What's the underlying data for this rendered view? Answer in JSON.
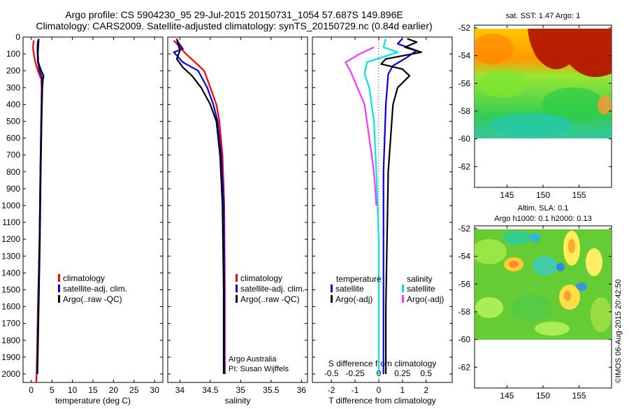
{
  "header": {
    "line1": "Argo profile: CS 5904230_95 29-Jul-2015 20150731_1054 57.687S 149.896E",
    "line2": "Climatology: CARS2009. Satellite-adjusted climatology: synTS_20150729.nc (0.84d earlier)"
  },
  "credit": {
    "agency": "Argo Australia",
    "pi": "PI: Susan Wijffels",
    "stamp": "©IMOS 06-Aug-2015 20:42:50"
  },
  "colors": {
    "climatology": "#ff0000",
    "satellite": "#0000e6",
    "argo": "#000000",
    "sal_satellite": "#00e5e5",
    "sal_argo": "#ff33ff"
  },
  "chart_data": [
    {
      "type": "line",
      "name": "temperature-profile",
      "xlabel": "temperature (deg C)",
      "xlim": [
        -2,
        32
      ],
      "ylim": [
        2050,
        0
      ],
      "xticks": [
        "0",
        "5",
        "10",
        "15",
        "20",
        "25",
        "30"
      ],
      "xtick_values": [
        0,
        5,
        10,
        15,
        20,
        25,
        30
      ],
      "yticks": [
        "0",
        "100",
        "200",
        "300",
        "400",
        "500",
        "600",
        "700",
        "800",
        "900",
        "1000",
        "1100",
        "1200",
        "1300",
        "1400",
        "1500",
        "1600",
        "1700",
        "1800",
        "1900",
        "2000"
      ],
      "ytick_values": [
        0,
        100,
        200,
        300,
        400,
        500,
        600,
        700,
        800,
        900,
        1000,
        1100,
        1200,
        1300,
        1400,
        1500,
        1600,
        1700,
        1800,
        1900,
        2000
      ],
      "legend": [
        "climatology",
        "satellite-adj. clim.",
        "Argo(..raw -QC)"
      ],
      "series": [
        {
          "name": "climatology",
          "color": "#ff0000",
          "points": [
            [
              0.6,
              20
            ],
            [
              0.4,
              60
            ],
            [
              0.6,
              100
            ],
            [
              1.0,
              150
            ],
            [
              1.6,
              200
            ],
            [
              2.4,
              250
            ],
            [
              2.5,
              300
            ],
            [
              2.4,
              500
            ],
            [
              2.2,
              800
            ],
            [
              2.0,
              1200
            ],
            [
              1.6,
              1600
            ],
            [
              1.3,
              2000
            ],
            [
              1.2,
              2050
            ]
          ]
        },
        {
          "name": "satellite-adj. clim.",
          "color": "#0000e6",
          "points": [
            [
              1.6,
              20
            ],
            [
              1.5,
              60
            ],
            [
              1.5,
              100
            ],
            [
              1.6,
              150
            ],
            [
              2.0,
              200
            ],
            [
              2.6,
              240
            ],
            [
              2.6,
              300
            ],
            [
              2.4,
              500
            ],
            [
              2.2,
              800
            ],
            [
              2.0,
              1200
            ],
            [
              1.7,
              1600
            ],
            [
              1.4,
              2000
            ]
          ]
        },
        {
          "name": "Argo(..raw -QC)",
          "color": "#000000",
          "points": [
            [
              1.8,
              10
            ],
            [
              1.7,
              50
            ],
            [
              1.6,
              100
            ],
            [
              1.7,
              150
            ],
            [
              2.4,
              200
            ],
            [
              3.0,
              230
            ],
            [
              2.8,
              260
            ],
            [
              2.7,
              300
            ],
            [
              2.5,
              500
            ],
            [
              2.3,
              800
            ],
            [
              2.1,
              1200
            ],
            [
              1.8,
              1600
            ],
            [
              1.5,
              2000
            ]
          ]
        }
      ]
    },
    {
      "type": "line",
      "name": "salinity-profile",
      "xlabel": "salinity",
      "xlim": [
        33.8,
        36.1
      ],
      "ylim": [
        2050,
        0
      ],
      "xticks": [
        "34",
        "34.5",
        "35",
        "35.5",
        "36"
      ],
      "xtick_values": [
        34,
        34.5,
        35,
        35.5,
        36
      ],
      "legend": [
        "climatology",
        "satellite-adj. clim.",
        "Argo(..raw -QC)"
      ],
      "series": [
        {
          "name": "climatology",
          "color": "#ff0000",
          "points": [
            [
              33.9,
              20
            ],
            [
              34.0,
              60
            ],
            [
              34.1,
              100
            ],
            [
              34.25,
              150
            ],
            [
              34.4,
              200
            ],
            [
              34.5,
              300
            ],
            [
              34.6,
              400
            ],
            [
              34.65,
              500
            ],
            [
              34.7,
              700
            ],
            [
              34.73,
              1000
            ],
            [
              34.74,
              1500
            ],
            [
              34.74,
              2000
            ]
          ]
        },
        {
          "name": "satellite-adj. clim.",
          "color": "#0000e6",
          "points": [
            [
              33.95,
              20
            ],
            [
              34.05,
              70
            ],
            [
              33.9,
              90
            ],
            [
              34.05,
              150
            ],
            [
              34.3,
              200
            ],
            [
              34.45,
              300
            ],
            [
              34.55,
              400
            ],
            [
              34.62,
              500
            ],
            [
              34.68,
              700
            ],
            [
              34.72,
              1000
            ],
            [
              34.73,
              1500
            ],
            [
              34.73,
              2000
            ]
          ]
        },
        {
          "name": "Argo(..raw -QC)",
          "color": "#000000",
          "points": [
            [
              33.95,
              10
            ],
            [
              34.0,
              80
            ],
            [
              33.95,
              130
            ],
            [
              34.05,
              180
            ],
            [
              34.2,
              230
            ],
            [
              34.35,
              300
            ],
            [
              34.5,
              400
            ],
            [
              34.6,
              500
            ],
            [
              34.66,
              700
            ],
            [
              34.7,
              1000
            ],
            [
              34.72,
              1500
            ],
            [
              34.72,
              2000
            ]
          ]
        }
      ]
    },
    {
      "type": "line",
      "name": "difference-profile",
      "xlabel": "T difference from climatology",
      "xlabel2": "S difference from climatology",
      "xlim": [
        -2.8,
        3.1
      ],
      "ylim": [
        2050,
        0
      ],
      "xticks": [
        "-2",
        "-1",
        "0",
        "1",
        "2"
      ],
      "xtick_values": [
        -2,
        -1,
        0,
        1,
        2
      ],
      "xticks2": [
        "-0.5",
        "-0.25",
        "0",
        "0.25",
        "0.5"
      ],
      "xtick2_values": [
        -2,
        -1,
        0,
        1,
        2
      ],
      "legend_headers": [
        "temperature",
        "salinity"
      ],
      "legend": [
        "satellite",
        "Argo(-adj)",
        "satellite",
        "Argo(-adj)"
      ],
      "series": [
        {
          "name": "satellite",
          "group": "temperature",
          "color": "#0000e6",
          "points": [
            [
              1.0,
              10
            ],
            [
              0.8,
              40
            ],
            [
              1.6,
              80
            ],
            [
              1.2,
              120
            ],
            [
              0.6,
              170
            ],
            [
              0.4,
              220
            ],
            [
              0.3,
              400
            ],
            [
              0.2,
              800
            ],
            [
              0.2,
              1200
            ],
            [
              0.2,
              1600
            ],
            [
              0.2,
              2000
            ]
          ]
        },
        {
          "name": "Argo(-adj)",
          "group": "temperature",
          "color": "#000000",
          "points": [
            [
              1.2,
              10
            ],
            [
              1.6,
              30
            ],
            [
              1.1,
              60
            ],
            [
              1.8,
              90
            ],
            [
              0.3,
              130
            ],
            [
              0.1,
              160
            ],
            [
              1.0,
              190
            ],
            [
              1.3,
              230
            ],
            [
              0.8,
              300
            ],
            [
              0.6,
              400
            ],
            [
              0.5,
              600
            ],
            [
              0.4,
              800
            ],
            [
              0.35,
              1200
            ],
            [
              0.3,
              1600
            ],
            [
              0.3,
              2000
            ]
          ]
        },
        {
          "name": "satellite",
          "group": "salinity",
          "color": "#00e5e5",
          "points": [
            [
              0.3,
              10
            ],
            [
              0.2,
              60
            ],
            [
              0.8,
              90
            ],
            [
              -0.5,
              150
            ],
            [
              -0.6,
              220
            ],
            [
              -0.4,
              300
            ],
            [
              -0.2,
              500
            ],
            [
              -0.1,
              800
            ],
            [
              0.0,
              1200
            ],
            [
              0.0,
              1600
            ],
            [
              0.0,
              2000
            ]
          ]
        },
        {
          "name": "Argo(-adj)",
          "group": "salinity",
          "color": "#ff33ff",
          "points": [
            [
              -0.2,
              60
            ],
            [
              -0.8,
              100
            ],
            [
              -1.4,
              150
            ],
            [
              -1.2,
              200
            ],
            [
              -0.9,
              300
            ],
            [
              -0.6,
              400
            ],
            [
              -0.4,
              600
            ],
            [
              -0.2,
              800
            ],
            [
              -0.1,
              1000
            ]
          ]
        }
      ]
    },
    {
      "type": "heatmap",
      "name": "sst-map",
      "title": "sat. SST: 1.47 Argo: 1",
      "xlim": [
        140.5,
        159.5
      ],
      "ylim": [
        -63.5,
        -51.8
      ],
      "data_bottom": -60,
      "xticks": [
        "145",
        "150",
        "155"
      ],
      "xtick_values": [
        145,
        150,
        155
      ],
      "yticks": [
        "-52",
        "-54",
        "-56",
        "-58",
        "-60",
        "-62"
      ],
      "ytick_values": [
        -52,
        -54,
        -56,
        -58,
        -60,
        -62
      ],
      "argo_position": [
        149.896,
        -57.687
      ]
    },
    {
      "type": "heatmap",
      "name": "sla-map",
      "title": "Altim. SLA: 0.1",
      "subtitle": "Argo h1000: 0.1 h2000: 0.13",
      "xlim": [
        140.5,
        159.5
      ],
      "ylim": [
        -63.5,
        -51.8
      ],
      "data_bottom": -60,
      "xticks": [
        "145",
        "150",
        "155"
      ],
      "xtick_values": [
        145,
        150,
        155
      ],
      "yticks": [
        "-52",
        "-54",
        "-56",
        "-58",
        "-60",
        "-62"
      ],
      "ytick_values": [
        -52,
        -54,
        -56,
        -58,
        -60,
        -62
      ],
      "argo_position": [
        149.896,
        -57.687
      ]
    }
  ]
}
